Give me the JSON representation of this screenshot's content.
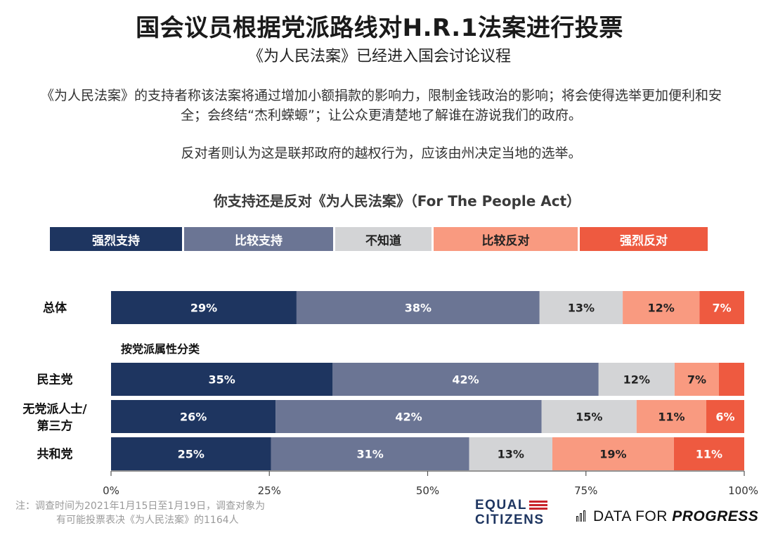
{
  "header": {
    "title": "国会议员根据党派路线对H.R.1法案进行投票",
    "subtitle": "《为人民法案》已经进入国会讨论议程"
  },
  "intro": {
    "supporters": "《为人民法案》的支持者称该法案将通过增加小额捐款的影响力，限制金钱政治的影响；将会使得选举更加便利和安全；会终结“杰利蝾螈”；让公众更清楚地了解谁在游说我们的政府。",
    "opponents": "反对者则认为这是联邦政府的越权行为，应该由州决定当地的选举。"
  },
  "colors": {
    "strong_support": "#1e3560",
    "somewhat_support": "#6b7594",
    "dont_know": "#d3d4d6",
    "somewhat_oppose": "#f99a80",
    "strong_oppose": "#ee5a40"
  },
  "chart_data": {
    "type": "bar",
    "orientation": "horizontal-stacked-100",
    "title": "你支持还是反对《为人民法案》（For The People Act）",
    "group_label": "按党派属性分类",
    "legend": [
      "强烈支持",
      "比较支持",
      "不知道",
      "比较反对",
      "强烈反对"
    ],
    "legend_placement": "top",
    "categories": [
      "总体",
      "民主党",
      "无党派人士/第三方",
      "共和党"
    ],
    "series": [
      {
        "name": "强烈支持",
        "values": [
          29,
          35,
          26,
          25
        ]
      },
      {
        "name": "比较支持",
        "values": [
          38,
          42,
          42,
          31
        ]
      },
      {
        "name": "不知道",
        "values": [
          13,
          12,
          15,
          13
        ]
      },
      {
        "name": "比较反对",
        "values": [
          12,
          7,
          11,
          19
        ]
      },
      {
        "name": "强烈反对",
        "values": [
          7,
          4,
          6,
          11
        ]
      }
    ],
    "hidden_labels": [
      [
        1,
        4
      ]
    ],
    "xlim": [
      0,
      100
    ],
    "x_ticks": [
      "0%",
      "25%",
      "50%",
      "75%",
      "100%"
    ],
    "grid": false
  },
  "footer": {
    "note_line1": "注：调查时间为2021年1月15日至1月19日，调查对象为",
    "note_line2": "有可能投票表决《为人民法案》的1164人",
    "logo_equal": "EQUAL",
    "logo_citizens": "CITIZENS",
    "logo_data_for": "DATA FOR",
    "logo_progress": "PROGRESS"
  }
}
